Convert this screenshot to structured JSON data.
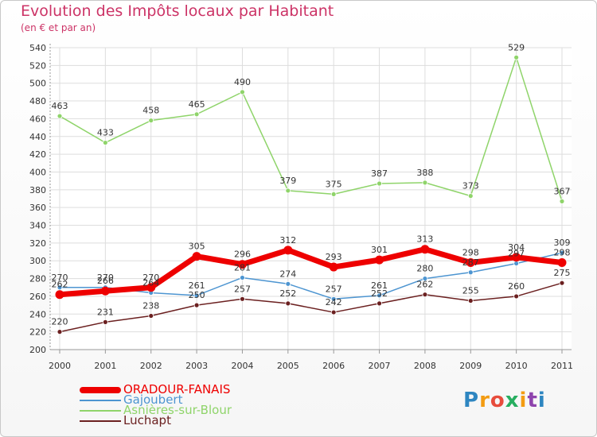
{
  "title": "Evolution des Impôts locaux par Habitant",
  "subtitle": "(en € et par an)",
  "logo": {
    "text": "Proxiti",
    "colors": [
      "#2e86c1",
      "#f39c12",
      "#e74c3c",
      "#27ae60",
      "#f39c12",
      "#8e44ad",
      "#2e86c1"
    ]
  },
  "chart_data": {
    "type": "line",
    "title": "Evolution des Impôts locaux par Habitant",
    "subtitle": "(en € et par an)",
    "xlabel": "",
    "ylabel": "",
    "x": [
      "2000",
      "2001",
      "2002",
      "2003",
      "2004",
      "2005",
      "2006",
      "2007",
      "2008",
      "2009",
      "2010",
      "2011"
    ],
    "ylim": [
      200,
      540
    ],
    "yticks": [
      200,
      220,
      240,
      260,
      280,
      300,
      320,
      340,
      360,
      380,
      400,
      420,
      440,
      460,
      480,
      500,
      520,
      540
    ],
    "grid": true,
    "legend_position": "bottom-left",
    "series": [
      {
        "name": "ORADOUR-FANAIS",
        "color": "#ee0000",
        "values": [
          262,
          266,
          270,
          305,
          296,
          312,
          293,
          301,
          313,
          298,
          304,
          298
        ],
        "labels": [
          "262",
          "266",
          "270",
          "305",
          "296",
          "312",
          "293",
          "301",
          "313",
          "298",
          "304",
          "298"
        ]
      },
      {
        "name": "Gajoubert",
        "color": "#4d95d1",
        "values": [
          270,
          270,
          264,
          261,
          281,
          274,
          257,
          261,
          280,
          287,
          297,
          309
        ],
        "labels": [
          "270",
          "270",
          "264",
          "261",
          "281",
          "274",
          "257",
          "261",
          "280",
          "287",
          "297",
          "309"
        ]
      },
      {
        "name": "Asnières-sur-Blour",
        "color": "#8fd46a",
        "values": [
          463,
          433,
          458,
          465,
          490,
          379,
          375,
          387,
          388,
          373,
          529,
          367
        ],
        "labels": [
          "463",
          "433",
          "458",
          "465",
          "490",
          "379",
          "375",
          "387",
          "388",
          "373",
          "529",
          "367"
        ]
      },
      {
        "name": "Luchapt",
        "color": "#6b2020",
        "values": [
          220,
          231,
          238,
          250,
          257,
          252,
          242,
          252,
          262,
          255,
          260,
          275
        ],
        "labels": [
          "220",
          "231",
          "238",
          "250",
          "257",
          "252",
          "242",
          "252",
          "262",
          "255",
          "260",
          "275"
        ]
      }
    ]
  }
}
